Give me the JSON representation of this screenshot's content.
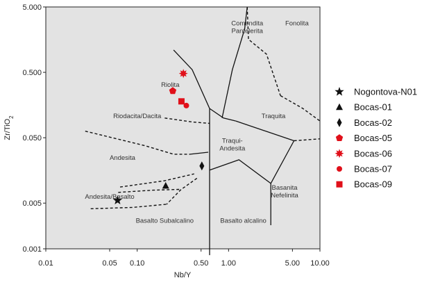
{
  "chart_data": {
    "type": "scatter",
    "title": "",
    "xlabel": "Nb/Y",
    "ylabel_main": "Zr/TiO",
    "ylabel_sub": "2",
    "xscale": "log",
    "yscale": "log",
    "xlim": [
      0.01,
      10
    ],
    "ylim": [
      0.001,
      5
    ],
    "grid": false,
    "legend_position": "right",
    "x_ticks": [
      {
        "value": 0.01,
        "label": "0.01"
      },
      {
        "value": 0.05,
        "label": "0.05"
      },
      {
        "value": 0.1,
        "label": "0.10"
      },
      {
        "value": 0.5,
        "label": "0.50"
      },
      {
        "value": 1,
        "label": "1.00"
      },
      {
        "value": 5,
        "label": "5.00"
      },
      {
        "value": 10,
        "label": "10.00"
      }
    ],
    "y_ticks": [
      {
        "value": 0.001,
        "label": "0.001"
      },
      {
        "value": 0.005,
        "label": "0.005"
      },
      {
        "value": 0.05,
        "label": "0.050"
      },
      {
        "value": 0.5,
        "label": "0.500"
      },
      {
        "value": 5,
        "label": "5.000"
      }
    ],
    "fields": [
      {
        "lines": [
          "Comendita",
          "Pantelerita"
        ],
        "x": 1.6,
        "y": 2.6
      },
      {
        "lines": [
          "Fonolita"
        ],
        "x": 5.6,
        "y": 2.6
      },
      {
        "lines": [
          "Riolita"
        ],
        "x": 0.23,
        "y": 0.3
      },
      {
        "lines": [
          "Traquita"
        ],
        "x": 3.1,
        "y": 0.1
      },
      {
        "lines": [
          "Riodacita/Dacita"
        ],
        "x": 0.1,
        "y": 0.1
      },
      {
        "lines": [
          "Traqui-",
          "Andesita"
        ],
        "x": 1.1,
        "y": 0.042
      },
      {
        "lines": [
          "Andesita"
        ],
        "x": 0.069,
        "y": 0.023
      },
      {
        "lines": [
          "Basanita",
          "Nefelinita"
        ],
        "x": 4.1,
        "y": 0.008
      },
      {
        "lines": [
          "Andesita/Basalto"
        ],
        "x": 0.05,
        "y": 0.0058
      },
      {
        "lines": [
          "Basalto Subalcalino"
        ],
        "x": 0.2,
        "y": 0.0025
      },
      {
        "lines": [
          "Basalto alcalino"
        ],
        "x": 1.45,
        "y": 0.0025
      }
    ],
    "series": [
      {
        "name": "Nogontova-N01",
        "marker": "star",
        "color": "#111111",
        "points": [
          [
            0.061,
            0.0055
          ]
        ]
      },
      {
        "name": "Bocas-01",
        "marker": "triangle",
        "color": "#111111",
        "points": [
          [
            0.205,
            0.0092
          ]
        ]
      },
      {
        "name": "Bocas-02",
        "marker": "diamond",
        "color": "#111111",
        "points": [
          [
            0.51,
            0.0185
          ]
        ]
      },
      {
        "name": "Bocas-05",
        "marker": "pentagon",
        "color": "#e0101a",
        "points": [
          [
            0.245,
            0.26
          ]
        ]
      },
      {
        "name": "Bocas-06",
        "marker": "starburst",
        "color": "#e0101a",
        "points": [
          [
            0.32,
            0.48
          ]
        ]
      },
      {
        "name": "Bocas-07",
        "marker": "circle",
        "color": "#e0101a",
        "points": [
          [
            0.345,
            0.155
          ]
        ]
      },
      {
        "name": "Bocas-09",
        "marker": "square",
        "color": "#e0101a",
        "points": [
          [
            0.305,
            0.18
          ]
        ]
      }
    ],
    "solid_boundaries": [
      [
        [
          0.25,
          1.1
        ],
        [
          0.4,
          0.55
        ],
        [
          0.62,
          0.14
        ]
      ],
      [
        [
          0.85,
          0.1
        ],
        [
          1.1,
          0.55
        ],
        [
          1.5,
          2.3
        ],
        [
          1.6,
          5
        ]
      ],
      [
        [
          1.2,
          0.09
        ],
        [
          5.2,
          0.045
        ]
      ],
      [
        [
          0.62,
          0.14
        ],
        [
          0.88,
          0.1
        ],
        [
          1.2,
          0.09
        ]
      ],
      [
        [
          0.62,
          0.14
        ],
        [
          0.62,
          0.0008
        ]
      ],
      [
        [
          0.62,
          0.016
        ],
        [
          1.3,
          0.023
        ],
        [
          2.9,
          0.01
        ]
      ],
      [
        [
          5.2,
          0.045
        ],
        [
          2.9,
          0.01
        ],
        [
          2.9,
          0.0023
        ]
      ],
      [
        [
          0.38,
          0.028
        ],
        [
          0.6,
          0.03
        ]
      ]
    ],
    "dashed_boundaries": [
      [
        [
          1.6,
          5
        ],
        [
          1.65,
          1.6
        ],
        [
          2.6,
          0.95
        ],
        [
          3.7,
          0.22
        ]
      ],
      [
        [
          3.7,
          0.22
        ],
        [
          6.5,
          0.14
        ],
        [
          10,
          0.09
        ]
      ],
      [
        [
          0.2,
          0.1
        ],
        [
          0.4,
          0.087
        ],
        [
          0.62,
          0.083
        ]
      ],
      [
        [
          0.027,
          0.063
        ],
        [
          0.12,
          0.038
        ],
        [
          0.25,
          0.028
        ],
        [
          0.38,
          0.028
        ]
      ],
      [
        [
          5.2,
          0.045
        ],
        [
          10,
          0.048
        ]
      ],
      [
        [
          0.065,
          0.0088
        ],
        [
          0.2,
          0.011
        ],
        [
          0.42,
          0.014
        ]
      ],
      [
        [
          0.45,
          0.012
        ],
        [
          0.3,
          0.008
        ],
        [
          0.21,
          0.0048
        ]
      ],
      [
        [
          0.031,
          0.0041
        ],
        [
          0.09,
          0.0043
        ],
        [
          0.21,
          0.0048
        ]
      ],
      [
        [
          0.062,
          0.0073
        ],
        [
          0.15,
          0.0079
        ],
        [
          0.29,
          0.0081
        ]
      ]
    ]
  }
}
